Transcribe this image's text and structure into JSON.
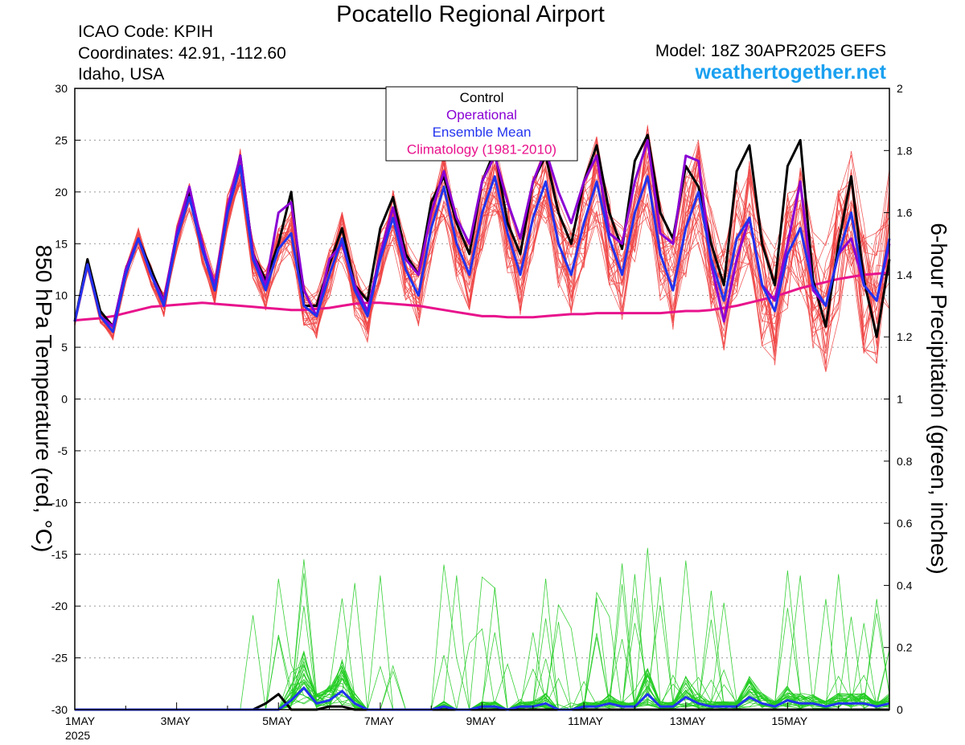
{
  "header": {
    "title": "Pocatello Regional Airport",
    "icao": "ICAO Code: KPIH",
    "coords": "Coordinates: 42.91, -112.60",
    "region": "Idaho, USA",
    "model": "Model: 18Z 30APR2025 GEFS",
    "site": "weathertogether.net"
  },
  "chart_data": {
    "type": "line",
    "title": "Pocatello Regional Airport",
    "ylabel": "850 hPa Temperature (red, °C)",
    "y2label": "6-hour Precipitation (green, inches)",
    "ylim": [
      -30,
      30
    ],
    "y2lim": [
      0,
      2
    ],
    "yticks": [
      30,
      25,
      20,
      15,
      10,
      5,
      0,
      -5,
      -10,
      -15,
      -20,
      -25,
      -30
    ],
    "y2ticks": [
      "2",
      "1.8",
      "1.6",
      "1.4",
      "1.2",
      "1",
      "0.8",
      "0.6",
      "0.4",
      "0.2",
      "0"
    ],
    "x_step_hours": 6,
    "x_start": "2025-05-01 00Z",
    "xticks": [
      {
        "label": "1MAY",
        "day": 0,
        "sub": "2025"
      },
      {
        "label": "3MAY",
        "day": 2
      },
      {
        "label": "5MAY",
        "day": 4
      },
      {
        "label": "7MAY",
        "day": 6
      },
      {
        "label": "9MAY",
        "day": 8
      },
      {
        "label": "11MAY",
        "day": 10
      },
      {
        "label": "13MAY",
        "day": 12
      },
      {
        "label": "15MAY",
        "day": 14
      }
    ],
    "legend": {
      "placement": "top-center",
      "entries": [
        {
          "label": "Control",
          "color": "#000000"
        },
        {
          "label": "Operational",
          "color": "#8a00d4"
        },
        {
          "label": "Ensemble Mean",
          "color": "#2233ee"
        },
        {
          "label": "Climatology (1981-2010)",
          "color": "#e8128c"
        }
      ]
    },
    "colors": {
      "member_temp": "#f04444",
      "member_precip": "#22cc22",
      "mean": "#2233ee",
      "control": "#000000",
      "operational": "#8a00d4",
      "climatology": "#e8128c"
    },
    "series": [
      {
        "name": "Control",
        "color": "#000000",
        "values": [
          7.5,
          13.5,
          8.5,
          7.0,
          12.5,
          15.5,
          12.5,
          9.5,
          15.5,
          20.0,
          15.0,
          10.5,
          18.0,
          23.5,
          14.0,
          11.5,
          15.0,
          20.0,
          9.0,
          9.0,
          13.0,
          16.5,
          11.0,
          9.5,
          16.5,
          19.5,
          14.0,
          12.0,
          19.0,
          21.5,
          17.0,
          14.0,
          21.0,
          24.0,
          17.0,
          14.0,
          21.0,
          23.5,
          18.0,
          15.0,
          21.0,
          24.5,
          18.0,
          14.5,
          23.0,
          25.5,
          18.0,
          15.5,
          22.5,
          20.5,
          15.0,
          11.0,
          22.0,
          24.5,
          15.0,
          11.0,
          22.5,
          25.0,
          11.5,
          7.0,
          15.0,
          21.5,
          11.5,
          6.0,
          13.5
        ]
      },
      {
        "name": "Operational",
        "color": "#8a00d4",
        "values": [
          7.5,
          13.0,
          8.0,
          7.0,
          12.5,
          15.5,
          12.0,
          9.5,
          16.0,
          20.5,
          15.0,
          11.0,
          18.5,
          23.5,
          14.0,
          11.0,
          18.0,
          19.0,
          10.5,
          8.0,
          13.5,
          15.0,
          11.0,
          8.5,
          14.0,
          18.5,
          13.5,
          12.0,
          18.0,
          22.0,
          17.5,
          15.0,
          21.0,
          23.5,
          19.0,
          15.5,
          21.0,
          24.0,
          20.0,
          17.0,
          21.0,
          23.5,
          16.0,
          15.0,
          21.0,
          25.0,
          16.0,
          15.0,
          23.5,
          23.0,
          13.0,
          7.5,
          13.5,
          17.5,
          11.0,
          9.5,
          15.0,
          21.0,
          10.5,
          9.0,
          14.0,
          15.5,
          11.0,
          9.5,
          15.0
        ]
      },
      {
        "name": "Ensemble Mean",
        "color": "#2233ee",
        "values": [
          7.5,
          13.0,
          8.0,
          6.5,
          12.0,
          15.5,
          12.0,
          9.0,
          15.5,
          19.5,
          14.5,
          10.5,
          18.0,
          22.5,
          13.5,
          10.5,
          14.5,
          16.0,
          9.0,
          8.0,
          12.0,
          15.5,
          10.5,
          8.0,
          13.5,
          17.5,
          12.5,
          10.0,
          16.5,
          20.5,
          15.0,
          12.0,
          18.0,
          21.5,
          16.0,
          12.0,
          17.5,
          21.0,
          15.0,
          12.0,
          17.0,
          21.0,
          15.5,
          12.0,
          18.0,
          21.5,
          14.0,
          10.5,
          16.5,
          20.0,
          13.5,
          9.5,
          15.5,
          17.5,
          11.0,
          8.5,
          14.0,
          16.5,
          11.0,
          9.0,
          14.0,
          18.0,
          11.0,
          9.5,
          15.5
        ]
      },
      {
        "name": "Climatology (1981-2010)",
        "color": "#e8128c",
        "values": [
          7.6,
          7.7,
          7.8,
          8.0,
          8.3,
          8.6,
          8.9,
          9.0,
          9.1,
          9.2,
          9.3,
          9.2,
          9.1,
          9.0,
          8.9,
          8.8,
          8.7,
          8.6,
          8.6,
          8.7,
          8.8,
          9.0,
          9.2,
          9.3,
          9.3,
          9.2,
          9.1,
          9.0,
          8.8,
          8.6,
          8.4,
          8.2,
          8.0,
          8.0,
          7.9,
          7.9,
          7.9,
          8.0,
          8.1,
          8.2,
          8.2,
          8.3,
          8.3,
          8.3,
          8.3,
          8.3,
          8.3,
          8.4,
          8.5,
          8.5,
          8.6,
          8.8,
          9.0,
          9.3,
          9.6,
          9.9,
          10.3,
          10.7,
          11.0,
          11.3,
          11.6,
          11.8,
          12.0,
          12.1,
          12.2
        ]
      },
      {
        "name": "Control",
        "axis": "precip",
        "color": "#000000",
        "values": [
          0,
          0,
          0,
          0,
          0,
          0,
          0,
          0,
          0,
          0,
          0,
          0,
          0,
          0,
          0,
          0.02,
          0.05,
          0,
          0,
          0,
          0.01,
          0.01,
          0,
          0,
          0,
          0,
          0,
          0,
          0,
          0,
          0,
          0,
          0,
          0,
          0,
          0,
          0,
          0,
          0,
          0,
          0,
          0,
          0,
          0,
          0,
          0,
          0,
          0,
          0,
          0,
          0,
          0,
          0,
          0,
          0,
          0,
          0,
          0,
          0,
          0,
          0,
          0,
          0,
          0,
          0
        ]
      },
      {
        "name": "Ensemble Mean",
        "axis": "precip",
        "color": "#2233ee",
        "values": [
          0,
          0,
          0,
          0,
          0,
          0,
          0,
          0,
          0,
          0,
          0,
          0,
          0,
          0,
          0,
          0,
          0,
          0.03,
          0.07,
          0.02,
          0.03,
          0.06,
          0.02,
          0,
          0,
          0,
          0,
          0,
          0,
          0.01,
          0,
          0,
          0.01,
          0.01,
          0,
          0.01,
          0.01,
          0.02,
          0,
          0,
          0.01,
          0.01,
          0.02,
          0.01,
          0.01,
          0.05,
          0.01,
          0.01,
          0.04,
          0.02,
          0.01,
          0.01,
          0.01,
          0.04,
          0.02,
          0.01,
          0.03,
          0.02,
          0.02,
          0.01,
          0.02,
          0.02,
          0.02,
          0.01,
          0.02
        ]
      }
    ]
  }
}
